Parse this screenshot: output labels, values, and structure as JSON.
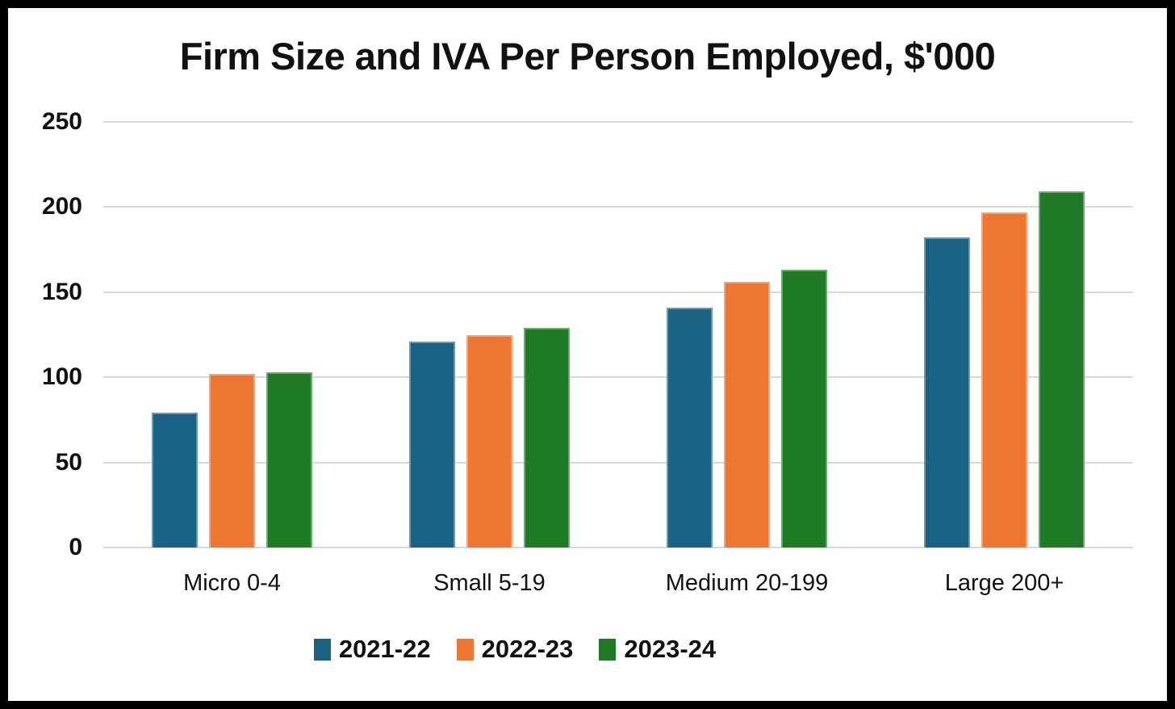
{
  "chart_data": {
    "type": "bar",
    "title": "Firm Size and IVA Per Person Employed, $'000",
    "categories": [
      "Micro 0-4",
      "Small 5-19",
      "Medium 20-199",
      "Large 200+"
    ],
    "series": [
      {
        "name": "2021-22",
        "color": "#1a6284",
        "values": [
          79,
          121,
          141,
          182
        ]
      },
      {
        "name": "2022-23",
        "color": "#ed7631",
        "values": [
          102,
          125,
          156,
          197
        ]
      },
      {
        "name": "2023-24",
        "color": "#1e7a25",
        "values": [
          103,
          129,
          163,
          209
        ]
      }
    ],
    "y_ticks": [
      0,
      50,
      100,
      150,
      200,
      250
    ],
    "ylim": [
      0,
      250
    ],
    "xlabel": "",
    "ylabel": "",
    "grid": true,
    "legend_position": "bottom"
  },
  "colors": {
    "background": "#ffffff",
    "frame_border": "#000000",
    "gridline": "#d9d9d9",
    "text": "#111111"
  }
}
